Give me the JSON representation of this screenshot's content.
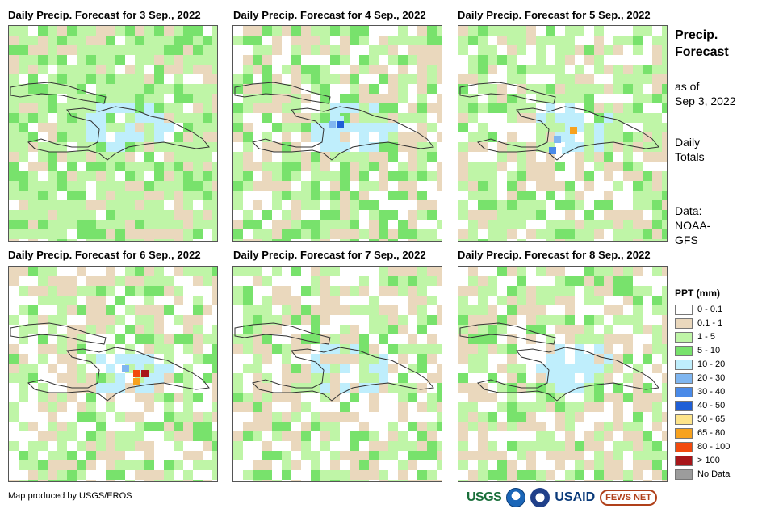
{
  "panels": [
    {
      "title": "Daily Precip. Forecast for 3 Sep., 2022"
    },
    {
      "title": "Daily Precip. Forecast for 4 Sep., 2022"
    },
    {
      "title": "Daily Precip. Forecast for 5 Sep., 2022"
    },
    {
      "title": "Daily Precip. Forecast for 6 Sep., 2022"
    },
    {
      "title": "Daily Precip. Forecast for 7 Sep., 2022"
    },
    {
      "title": "Daily Precip. Forecast for 8 Sep., 2022"
    }
  ],
  "sidebar": {
    "title_line1": "Precip.",
    "title_line2": "Forecast",
    "as_of_line1": "as of",
    "as_of_line2": "Sep 3, 2022",
    "totals_line1": "Daily",
    "totals_line2": "Totals",
    "data_line1": "Data:",
    "data_line2": "NOAA-",
    "data_line3": "GFS"
  },
  "legend": {
    "title": "PPT (mm)",
    "items": [
      {
        "label": "0 - 0.1",
        "color": "#ffffff"
      },
      {
        "label": "0.1 - 1",
        "color": "#ead8bd"
      },
      {
        "label": "1 - 5",
        "color": "#bff5a7"
      },
      {
        "label": "5 - 10",
        "color": "#78e26c"
      },
      {
        "label": "10 - 20",
        "color": "#bfeefc"
      },
      {
        "label": "20 - 30",
        "color": "#7fb6f0"
      },
      {
        "label": "30 - 40",
        "color": "#4a8ae8"
      },
      {
        "label": "40 - 50",
        "color": "#1f5fd6"
      },
      {
        "label": "50 - 65",
        "color": "#fde48a"
      },
      {
        "label": "65 - 80",
        "color": "#f7a21e"
      },
      {
        "label": "80 - 100",
        "color": "#f24a0e"
      },
      {
        "label": "> 100",
        "color": "#a8161a"
      },
      {
        "label": "No Data",
        "color": "#9c9c9c"
      }
    ]
  },
  "footer": {
    "credit": "Map produced by USGS/EROS",
    "logos": [
      "USGS",
      "NOAA",
      "DOS",
      "USAID",
      "FEWS NET"
    ]
  }
}
